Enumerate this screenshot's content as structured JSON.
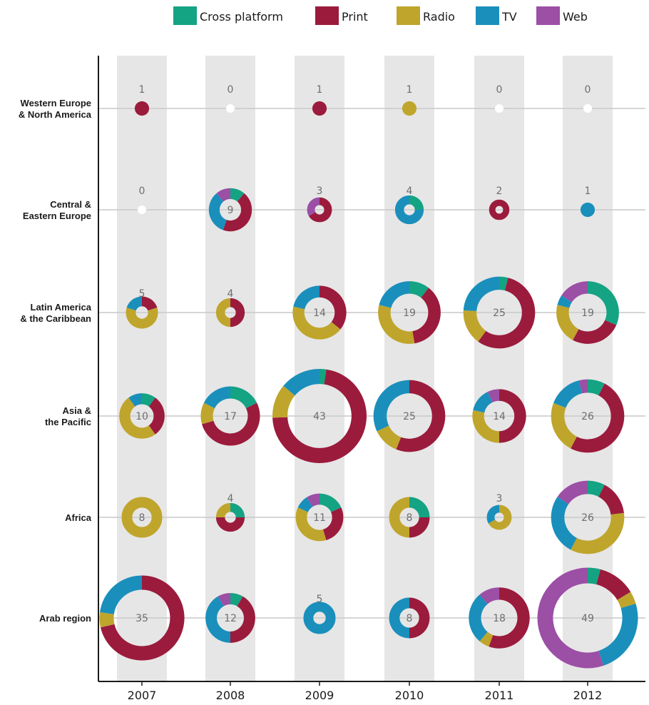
{
  "chart_data": {
    "type": "donut-matrix",
    "legend": [
      {
        "name": "Cross platform",
        "color": "#14a383"
      },
      {
        "name": "Print",
        "color": "#9b1b3c"
      },
      {
        "name": "Radio",
        "color": "#bfa52b"
      },
      {
        "name": "TV",
        "color": "#1a8fbb"
      },
      {
        "name": "Web",
        "color": "#9b4fa5"
      }
    ],
    "years": [
      "2007",
      "2008",
      "2009",
      "2010",
      "2011",
      "2012"
    ],
    "regions": [
      {
        "label": [
          "Western Europe",
          "& North America"
        ],
        "values": [
          {
            "total": 1,
            "parts": [
              0,
              1,
              0,
              0,
              0
            ]
          },
          {
            "total": 0,
            "parts": [
              0,
              0,
              0,
              0,
              0
            ]
          },
          {
            "total": 1,
            "parts": [
              0,
              1,
              0,
              0,
              0
            ]
          },
          {
            "total": 1,
            "parts": [
              0,
              0,
              1,
              0,
              0
            ]
          },
          {
            "total": 0,
            "parts": [
              0,
              0,
              0,
              0,
              0
            ]
          },
          {
            "total": 0,
            "parts": [
              0,
              0,
              0,
              0,
              0
            ]
          }
        ]
      },
      {
        "label": [
          "Central &",
          "Eastern Europe"
        ],
        "values": [
          {
            "total": 0,
            "parts": [
              0,
              0,
              0,
              0,
              0
            ]
          },
          {
            "total": 9,
            "parts": [
              1,
              4,
              0,
              3,
              1
            ]
          },
          {
            "total": 3,
            "parts": [
              0,
              2,
              0,
              0,
              1
            ]
          },
          {
            "total": 4,
            "parts": [
              1,
              0,
              0,
              3,
              0
            ]
          },
          {
            "total": 2,
            "parts": [
              0,
              2,
              0,
              0,
              0
            ]
          },
          {
            "total": 1,
            "parts": [
              0,
              0,
              0,
              1,
              0
            ]
          }
        ]
      },
      {
        "label": [
          "Latin America",
          "& the Caribbean"
        ],
        "values": [
          {
            "total": 5,
            "parts": [
              0,
              1,
              3,
              1,
              0
            ]
          },
          {
            "total": 4,
            "parts": [
              0,
              2,
              2,
              0,
              0
            ]
          },
          {
            "total": 14,
            "parts": [
              0,
              5,
              6,
              3,
              0
            ]
          },
          {
            "total": 19,
            "parts": [
              2,
              7,
              6,
              4,
              0
            ]
          },
          {
            "total": 25,
            "parts": [
              1,
              14,
              4,
              6,
              0
            ]
          },
          {
            "total": 19,
            "parts": [
              6,
              5,
              4,
              1,
              3
            ]
          }
        ]
      },
      {
        "label": [
          "Asia &",
          "the Pacific"
        ],
        "values": [
          {
            "total": 10,
            "parts": [
              1,
              3,
              5,
              1,
              0
            ]
          },
          {
            "total": 17,
            "parts": [
              3,
              9,
              2,
              3,
              0
            ]
          },
          {
            "total": 43,
            "parts": [
              1,
              31,
              5,
              6,
              0
            ]
          },
          {
            "total": 25,
            "parts": [
              0,
              14,
              3,
              8,
              0
            ]
          },
          {
            "total": 14,
            "parts": [
              0,
              7,
              4,
              2,
              1
            ]
          },
          {
            "total": 26,
            "parts": [
              2,
              13,
              6,
              4,
              1
            ]
          }
        ]
      },
      {
        "label": [
          "Africa"
        ],
        "values": [
          {
            "total": 8,
            "parts": [
              0,
              0,
              8,
              0,
              0
            ]
          },
          {
            "total": 4,
            "parts": [
              1,
              2,
              1,
              0,
              0
            ]
          },
          {
            "total": 11,
            "parts": [
              2,
              3,
              4,
              1,
              1
            ]
          },
          {
            "total": 8,
            "parts": [
              2,
              2,
              4,
              0,
              0
            ]
          },
          {
            "total": 3,
            "parts": [
              0,
              0,
              2,
              1,
              0
            ]
          },
          {
            "total": 26,
            "parts": [
              2,
              4,
              9,
              7,
              4
            ]
          }
        ]
      },
      {
        "label": [
          "Arab region"
        ],
        "values": [
          {
            "total": 35,
            "parts": [
              0,
              25,
              2,
              8,
              0
            ]
          },
          {
            "total": 12,
            "parts": [
              1,
              5,
              0,
              5,
              1
            ]
          },
          {
            "total": 5,
            "parts": [
              0,
              0,
              0,
              5,
              0
            ]
          },
          {
            "total": 8,
            "parts": [
              0,
              4,
              0,
              4,
              0
            ]
          },
          {
            "total": 18,
            "parts": [
              0,
              10,
              1,
              5,
              2
            ]
          },
          {
            "total": 49,
            "parts": [
              2,
              6,
              2,
              12,
              27
            ]
          }
        ]
      }
    ]
  }
}
